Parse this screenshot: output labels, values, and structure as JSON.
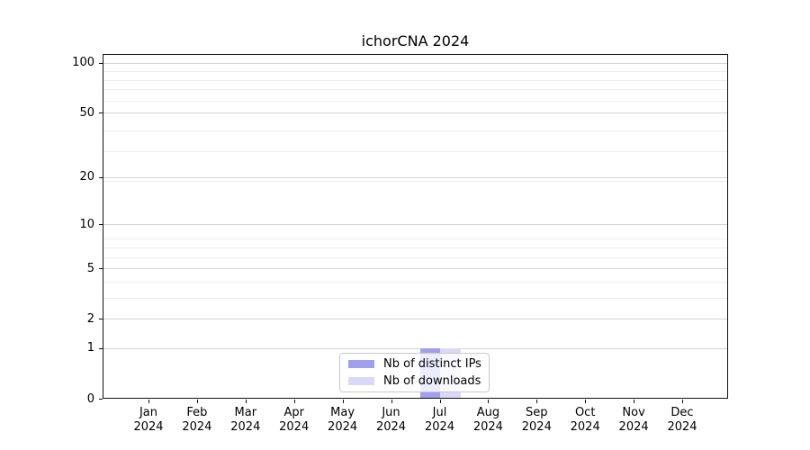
{
  "chart_data": {
    "type": "bar",
    "title": "ichorCNA 2024",
    "categories": [
      "Jan",
      "Feb",
      "Mar",
      "Apr",
      "May",
      "Jun",
      "Jul",
      "Aug",
      "Sep",
      "Oct",
      "Nov",
      "Dec"
    ],
    "year_label": "2024",
    "series": [
      {
        "name": "Nb of distinct IPs",
        "color": "#9f9fee",
        "values": [
          0,
          0,
          0,
          0,
          0,
          0,
          1,
          0,
          0,
          0,
          0,
          0
        ]
      },
      {
        "name": "Nb of downloads",
        "color": "#d9d9f7",
        "values": [
          0,
          0,
          0,
          0,
          0,
          0,
          1,
          0,
          0,
          0,
          0,
          0
        ]
      }
    ],
    "yscale": "log1p",
    "yticks": [
      0,
      1,
      2,
      5,
      10,
      20,
      50,
      100
    ],
    "ylim": [
      0,
      113
    ],
    "xlabel": "",
    "ylabel": "",
    "grid": {
      "major": true,
      "minor": true
    },
    "legend": {
      "position": "lower center",
      "entries": [
        "Nb of distinct IPs",
        "Nb of downloads"
      ]
    }
  }
}
